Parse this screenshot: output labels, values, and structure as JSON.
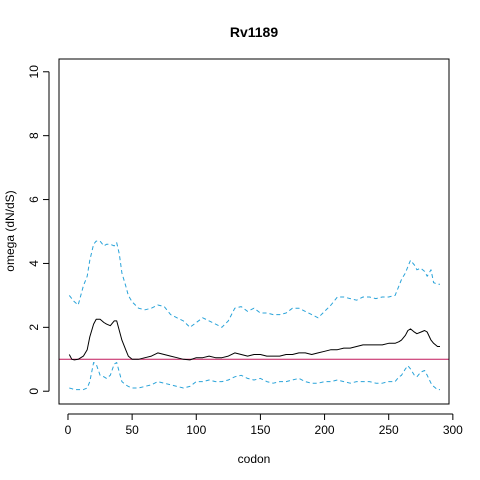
{
  "chart_data": {
    "type": "line",
    "title": "Rv1189",
    "xlabel": "codon",
    "ylabel": "omega (dN/dS)",
    "xlim": [
      -7,
      297
    ],
    "ylim": [
      -0.4,
      10.4
    ],
    "xticks": [
      "0",
      "50",
      "100",
      "150",
      "200",
      "250",
      "300"
    ],
    "yticks": [
      "0",
      "2",
      "4",
      "6",
      "8",
      "10"
    ],
    "reference_line": {
      "y": 1,
      "color": "#c2185b"
    },
    "grid": false,
    "legend": "none",
    "series": [
      {
        "role": "upper",
        "color": "#29a3d9",
        "dash": true,
        "x": [
          1,
          3,
          5,
          8,
          10,
          12,
          15,
          17,
          20,
          22,
          25,
          28,
          30,
          33,
          36,
          38,
          40,
          42,
          45,
          47,
          50,
          55,
          60,
          65,
          70,
          75,
          80,
          85,
          90,
          95,
          100,
          105,
          110,
          115,
          120,
          125,
          130,
          135,
          140,
          145,
          150,
          155,
          160,
          165,
          170,
          175,
          180,
          185,
          190,
          195,
          200,
          205,
          210,
          215,
          220,
          225,
          230,
          235,
          240,
          245,
          250,
          255,
          258,
          260,
          263,
          265,
          267,
          270,
          272,
          275,
          278,
          280,
          283,
          285,
          288,
          290
        ],
        "values": [
          3.0,
          2.9,
          2.8,
          2.7,
          3.0,
          3.3,
          3.6,
          4.1,
          4.6,
          4.7,
          4.7,
          4.55,
          4.6,
          4.6,
          4.55,
          4.65,
          4.3,
          3.7,
          3.3,
          3.0,
          2.8,
          2.6,
          2.55,
          2.6,
          2.7,
          2.65,
          2.4,
          2.3,
          2.2,
          2.0,
          2.15,
          2.3,
          2.2,
          2.1,
          2.0,
          2.2,
          2.6,
          2.65,
          2.5,
          2.6,
          2.45,
          2.45,
          2.4,
          2.4,
          2.45,
          2.6,
          2.6,
          2.5,
          2.4,
          2.3,
          2.5,
          2.7,
          2.95,
          2.95,
          2.9,
          2.85,
          2.95,
          2.95,
          2.9,
          2.95,
          2.95,
          3.0,
          3.3,
          3.5,
          3.7,
          3.9,
          4.1,
          3.95,
          3.8,
          3.85,
          3.75,
          3.6,
          3.8,
          3.4,
          3.35,
          3.35
        ]
      },
      {
        "role": "estimate",
        "color": "#000000",
        "dash": false,
        "x": [
          1,
          3,
          5,
          8,
          10,
          12,
          15,
          17,
          20,
          22,
          25,
          28,
          30,
          33,
          36,
          38,
          40,
          42,
          45,
          47,
          50,
          55,
          60,
          65,
          70,
          75,
          80,
          85,
          90,
          95,
          100,
          105,
          110,
          115,
          120,
          125,
          130,
          135,
          140,
          145,
          150,
          155,
          160,
          165,
          170,
          175,
          180,
          185,
          190,
          195,
          200,
          205,
          210,
          215,
          220,
          225,
          230,
          235,
          240,
          245,
          250,
          255,
          258,
          260,
          263,
          265,
          267,
          270,
          272,
          275,
          278,
          280,
          283,
          285,
          288,
          290
        ],
        "values": [
          1.15,
          1.0,
          0.98,
          1.0,
          1.05,
          1.1,
          1.3,
          1.7,
          2.1,
          2.25,
          2.25,
          2.15,
          2.1,
          2.05,
          2.2,
          2.2,
          1.9,
          1.6,
          1.3,
          1.1,
          1.0,
          1.0,
          1.05,
          1.1,
          1.2,
          1.15,
          1.1,
          1.05,
          1.0,
          0.98,
          1.05,
          1.05,
          1.1,
          1.05,
          1.05,
          1.1,
          1.2,
          1.15,
          1.1,
          1.15,
          1.15,
          1.1,
          1.1,
          1.1,
          1.15,
          1.15,
          1.2,
          1.2,
          1.15,
          1.2,
          1.25,
          1.3,
          1.3,
          1.35,
          1.35,
          1.4,
          1.45,
          1.45,
          1.45,
          1.45,
          1.5,
          1.5,
          1.55,
          1.6,
          1.75,
          1.9,
          1.95,
          1.85,
          1.8,
          1.85,
          1.9,
          1.85,
          1.6,
          1.5,
          1.4,
          1.4
        ]
      },
      {
        "role": "lower",
        "color": "#29a3d9",
        "dash": true,
        "x": [
          1,
          3,
          5,
          8,
          10,
          12,
          15,
          17,
          20,
          22,
          25,
          28,
          30,
          33,
          36,
          38,
          40,
          42,
          45,
          47,
          50,
          55,
          60,
          65,
          70,
          75,
          80,
          85,
          90,
          95,
          100,
          105,
          110,
          115,
          120,
          125,
          130,
          135,
          140,
          145,
          150,
          155,
          160,
          165,
          170,
          175,
          180,
          185,
          190,
          195,
          200,
          205,
          210,
          215,
          220,
          225,
          230,
          235,
          240,
          245,
          250,
          255,
          258,
          260,
          263,
          265,
          267,
          270,
          272,
          275,
          278,
          280,
          283,
          285,
          288,
          290
        ],
        "values": [
          0.1,
          0.08,
          0.05,
          0.05,
          0.05,
          0.05,
          0.1,
          0.3,
          0.9,
          0.85,
          0.5,
          0.45,
          0.4,
          0.5,
          0.85,
          0.9,
          0.6,
          0.3,
          0.2,
          0.15,
          0.1,
          0.1,
          0.15,
          0.2,
          0.3,
          0.25,
          0.2,
          0.15,
          0.1,
          0.15,
          0.3,
          0.3,
          0.35,
          0.3,
          0.3,
          0.35,
          0.45,
          0.5,
          0.4,
          0.35,
          0.4,
          0.3,
          0.25,
          0.3,
          0.3,
          0.35,
          0.4,
          0.3,
          0.25,
          0.25,
          0.3,
          0.3,
          0.35,
          0.3,
          0.25,
          0.3,
          0.3,
          0.3,
          0.25,
          0.25,
          0.3,
          0.3,
          0.45,
          0.5,
          0.7,
          0.8,
          0.7,
          0.5,
          0.45,
          0.6,
          0.65,
          0.5,
          0.25,
          0.15,
          0.05,
          0.05
        ]
      }
    ]
  }
}
